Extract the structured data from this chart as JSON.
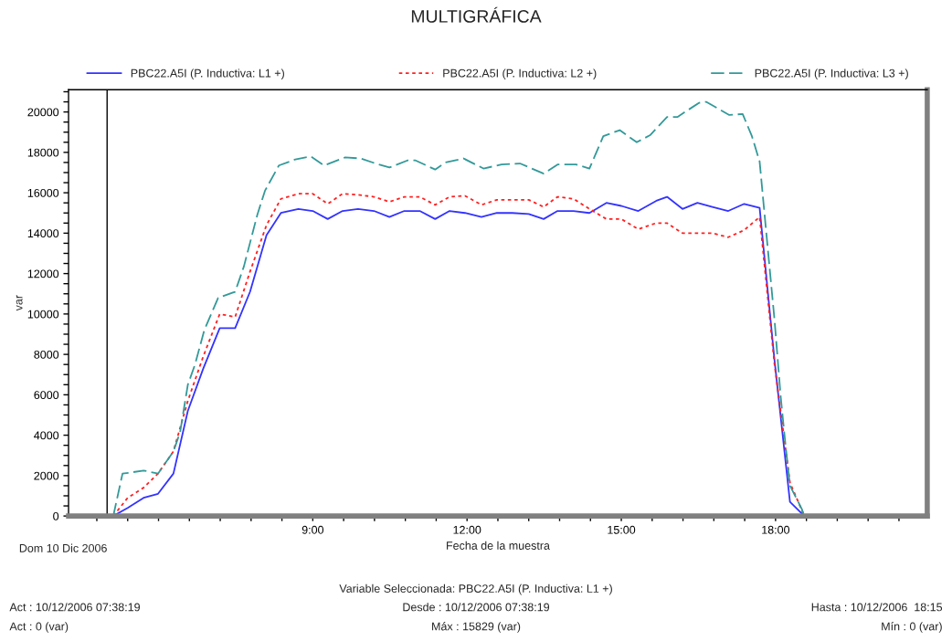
{
  "chart_data": {
    "type": "line",
    "title": "MULTIGRÁFICA",
    "xlabel": "Fecha de la muestra",
    "ylabel": "var",
    "xlim": [
      4.25,
      20.95
    ],
    "ylim": [
      0,
      21100
    ],
    "xticks": [
      {
        "value": 4.8,
        "label": null
      },
      {
        "value": 5.4,
        "label": null
      },
      {
        "value": 6.0,
        "label": null
      },
      {
        "value": 6.6,
        "label": null
      },
      {
        "value": 7.2,
        "label": null
      },
      {
        "value": 7.8,
        "label": null
      },
      {
        "value": 8.4,
        "label": null
      },
      {
        "value": 9.0,
        "label": "9:00"
      },
      {
        "value": 9.6,
        "label": null
      },
      {
        "value": 10.2,
        "label": null
      },
      {
        "value": 10.8,
        "label": null
      },
      {
        "value": 11.4,
        "label": null
      },
      {
        "value": 12.0,
        "label": "12:00"
      },
      {
        "value": 12.6,
        "label": null
      },
      {
        "value": 13.2,
        "label": null
      },
      {
        "value": 13.8,
        "label": null
      },
      {
        "value": 14.4,
        "label": null
      },
      {
        "value": 15.0,
        "label": "15:00"
      },
      {
        "value": 15.6,
        "label": null
      },
      {
        "value": 16.2,
        "label": null
      },
      {
        "value": 16.8,
        "label": null
      },
      {
        "value": 17.4,
        "label": null
      },
      {
        "value": 18.0,
        "label": "18:00"
      },
      {
        "value": 18.6,
        "label": null
      },
      {
        "value": 19.2,
        "label": null
      },
      {
        "value": 19.8,
        "label": null
      },
      {
        "value": 20.4,
        "label": null
      }
    ],
    "yticks": [
      0,
      {
        "value": 500,
        "label": null
      },
      {
        "value": 1000,
        "label": null
      },
      {
        "value": 1500,
        "label": null
      },
      2000,
      {
        "value": 2500,
        "label": null
      },
      {
        "value": 3000,
        "label": null
      },
      {
        "value": 3500,
        "label": null
      },
      4000,
      {
        "value": 4500,
        "label": null
      },
      {
        "value": 5000,
        "label": null
      },
      {
        "value": 5500,
        "label": null
      },
      6000,
      {
        "value": 6500,
        "label": null
      },
      {
        "value": 7000,
        "label": null
      },
      {
        "value": 7500,
        "label": null
      },
      8000,
      {
        "value": 8500,
        "label": null
      },
      {
        "value": 9000,
        "label": null
      },
      {
        "value": 9500,
        "label": null
      },
      10000,
      {
        "value": 10500,
        "label": null
      },
      {
        "value": 11000,
        "label": null
      },
      {
        "value": 11500,
        "label": null
      },
      12000,
      {
        "value": 12500,
        "label": null
      },
      {
        "value": 13000,
        "label": null
      },
      {
        "value": 13500,
        "label": null
      },
      14000,
      {
        "value": 14500,
        "label": null
      },
      {
        "value": 15000,
        "label": null
      },
      {
        "value": 15500,
        "label": null
      },
      16000,
      {
        "value": 16500,
        "label": null
      },
      {
        "value": 17000,
        "label": null
      },
      {
        "value": 17500,
        "label": null
      },
      18000,
      {
        "value": 18500,
        "label": null
      },
      {
        "value": 19000,
        "label": null
      },
      {
        "value": 19500,
        "label": null
      },
      20000,
      {
        "value": 20500,
        "label": null
      },
      {
        "value": 21000,
        "label": null
      }
    ],
    "grid": false,
    "legend": "top",
    "marker": "none",
    "ref_lines": [
      {
        "axis": "x",
        "value": 5.0,
        "color": "#000000"
      }
    ],
    "series": [
      {
        "name": "PBC22.A5I (P. Inductiva: L1 +)",
        "color": "#3333ff",
        "line_style": "solid",
        "x": [
          5.12,
          5.4,
          5.71,
          5.99,
          6.29,
          6.57,
          6.87,
          7.19,
          7.49,
          7.78,
          8.1,
          8.38,
          8.72,
          9.0,
          9.29,
          9.58,
          9.88,
          10.19,
          10.49,
          10.78,
          11.08,
          11.38,
          11.66,
          11.96,
          12.28,
          12.58,
          12.88,
          13.2,
          13.49,
          13.76,
          14.07,
          14.38,
          14.71,
          15.0,
          15.33,
          15.68,
          15.89,
          16.19,
          16.48,
          16.77,
          17.08,
          17.39,
          17.69,
          17.98,
          18.28,
          18.56
        ],
        "values": [
          0,
          400,
          900,
          1100,
          2100,
          5200,
          7300,
          9300,
          9300,
          11100,
          13900,
          15000,
          15200,
          15100,
          14700,
          15100,
          15200,
          15100,
          14800,
          15100,
          15100,
          14700,
          15100,
          15000,
          14800,
          15000,
          15000,
          14950,
          14700,
          15100,
          15100,
          15000,
          15500,
          15350,
          15100,
          15600,
          15800,
          15200,
          15500,
          15300,
          15100,
          15450,
          15250,
          7700,
          700,
          0
        ]
      },
      {
        "name": "PBC22.A5I (P. Inductiva: L2 +)",
        "color": "#ff2020",
        "line_style": "dotted",
        "x": [
          5.12,
          5.4,
          5.71,
          5.99,
          6.29,
          6.57,
          6.87,
          7.19,
          7.49,
          7.78,
          8.1,
          8.38,
          8.72,
          9.0,
          9.29,
          9.58,
          9.88,
          10.19,
          10.49,
          10.78,
          11.08,
          11.38,
          11.66,
          11.96,
          12.28,
          12.58,
          12.88,
          13.2,
          13.49,
          13.76,
          14.07,
          14.38,
          14.71,
          15.0,
          15.33,
          15.68,
          15.89,
          16.19,
          16.48,
          16.77,
          17.08,
          17.39,
          17.69,
          17.98,
          18.28,
          18.56
        ],
        "values": [
          0,
          900,
          1400,
          2100,
          3200,
          5700,
          7900,
          10000,
          9850,
          12100,
          14400,
          15700,
          15950,
          15950,
          15450,
          15950,
          15900,
          15800,
          15550,
          15800,
          15800,
          15400,
          15800,
          15850,
          15400,
          15650,
          15650,
          15650,
          15300,
          15800,
          15700,
          15200,
          14700,
          14700,
          14200,
          14500,
          14500,
          14000,
          14000,
          14000,
          13800,
          14150,
          14800,
          7500,
          1650,
          0
        ]
      },
      {
        "name": "PBC22.A5I (P. Inductiva: L3 +)",
        "color": "#339999",
        "line_style": "dashed",
        "x": [
          5.12,
          5.3,
          5.45,
          5.71,
          5.99,
          6.29,
          6.42,
          6.57,
          6.71,
          6.89,
          7.16,
          7.49,
          7.66,
          7.92,
          8.07,
          8.34,
          8.66,
          8.96,
          9.22,
          9.63,
          9.93,
          10.28,
          10.49,
          10.84,
          11.0,
          11.38,
          11.58,
          11.93,
          12.32,
          12.67,
          13.03,
          13.49,
          13.76,
          14.12,
          14.38,
          14.65,
          14.97,
          15.3,
          15.56,
          15.89,
          16.09,
          16.51,
          16.65,
          17.1,
          17.36,
          17.54,
          17.69,
          17.8,
          17.98,
          18.1,
          18.19,
          18.28,
          18.51,
          18.56
        ],
        "values": [
          0,
          2100,
          2150,
          2250,
          2100,
          3200,
          4150,
          6500,
          7500,
          9200,
          10800,
          11100,
          12350,
          14900,
          16100,
          17350,
          17650,
          17800,
          17350,
          17750,
          17700,
          17400,
          17250,
          17600,
          17600,
          17150,
          17500,
          17700,
          17200,
          17400,
          17450,
          16950,
          17400,
          17400,
          17200,
          18800,
          19100,
          18500,
          18850,
          19750,
          19750,
          20450,
          20500,
          19850,
          19900,
          18800,
          17550,
          14550,
          9700,
          5900,
          3600,
          1500,
          350,
          0
        ]
      }
    ],
    "annotations": [
      "Dom 10 Dic 2006",
      "Variable Seleccionada: PBC22.A5I (P. Inductiva: L1 +)",
      "Act : 10/12/2006 07:38:19",
      "Desde : 10/12/2006 07:38:19",
      "Hasta : 10/12/2006  18:15",
      "Act : 0 (var)",
      "Máx : 15829 (var)",
      "Mín : 0 (var)"
    ]
  }
}
